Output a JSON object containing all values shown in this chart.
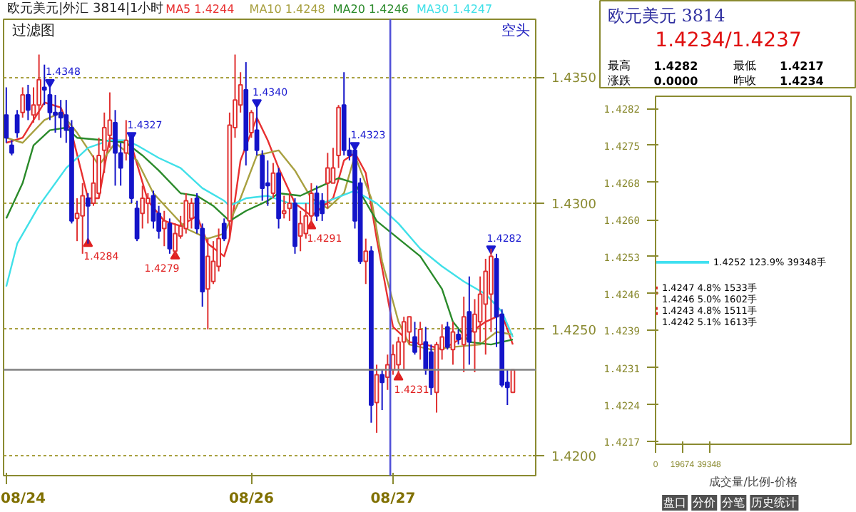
{
  "chart_data": [
    {
      "type": "candlestick",
      "title": "欧元美元|外汇 3814|1小时",
      "subtitle": "过滤图",
      "categories": [
        "08/24",
        null,
        null,
        null,
        null,
        null,
        null,
        null,
        null,
        null,
        null,
        null,
        null,
        null,
        null,
        null,
        null,
        null,
        null,
        null,
        null,
        null,
        null,
        null,
        null,
        null,
        null,
        null,
        null,
        null,
        null,
        null,
        null,
        null,
        null,
        null,
        null,
        null,
        null,
        null,
        null,
        null,
        null,
        null,
        null,
        "08/26",
        null,
        null,
        null,
        null,
        null,
        null,
        null,
        null,
        null,
        null,
        null,
        null,
        null,
        null,
        null,
        null,
        null,
        null,
        null,
        null,
        null,
        null,
        null,
        null,
        null,
        "08/27",
        null,
        null,
        null,
        null,
        null,
        null,
        null,
        null,
        null,
        null,
        null,
        null,
        null,
        null,
        null,
        null,
        null,
        null,
        null,
        null,
        null,
        null
      ],
      "ohlc": [
        [
          1.4335,
          1.4346,
          1.4324,
          1.4326
        ],
        [
          1.4323,
          1.4325,
          1.4319,
          1.432
        ],
        [
          1.4335,
          1.4337,
          1.4326,
          1.4328
        ],
        [
          1.4336,
          1.4346,
          1.4334,
          1.4343
        ],
        [
          1.4343,
          1.4347,
          1.4333,
          1.4337
        ],
        [
          1.4335,
          1.4346,
          1.4332,
          1.4339
        ],
        [
          1.4339,
          1.4359,
          1.4333,
          1.4349
        ],
        [
          1.4346,
          1.4355,
          1.4339,
          1.4345
        ],
        [
          1.4343,
          1.4348,
          1.4333,
          1.4336
        ],
        [
          1.4336,
          1.4343,
          1.4328,
          1.4335
        ],
        [
          1.4336,
          1.4341,
          1.4326,
          1.4334
        ],
        [
          1.4335,
          1.4341,
          1.4324,
          1.4329
        ],
        [
          1.433,
          1.4333,
          1.4292,
          1.4293
        ],
        [
          1.4294,
          1.4302,
          1.4285,
          1.4296
        ],
        [
          1.4295,
          1.4308,
          1.428,
          1.4303
        ],
        [
          1.4302,
          1.4304,
          1.4284,
          1.4299
        ],
        [
          1.43,
          1.4319,
          1.4299,
          1.4308
        ],
        [
          1.4304,
          1.4326,
          1.4302,
          1.4319
        ],
        [
          1.4321,
          1.4336,
          1.4312,
          1.433
        ],
        [
          1.4327,
          1.4344,
          1.4322,
          1.4333
        ],
        [
          1.4332,
          1.4337,
          1.4307,
          1.432
        ],
        [
          1.432,
          1.4324,
          1.4307,
          1.4314
        ],
        [
          1.432,
          1.4333,
          1.4317,
          1.4325
        ],
        [
          1.4326,
          1.4327,
          1.43,
          1.4302
        ],
        [
          1.4298,
          1.4301,
          1.4285,
          1.4286
        ],
        [
          1.4296,
          1.4307,
          1.429,
          1.4302
        ],
        [
          1.43,
          1.4304,
          1.4292,
          1.4302
        ],
        [
          1.4303,
          1.4305,
          1.429,
          1.4293
        ],
        [
          1.4296,
          1.4299,
          1.4286,
          1.4289
        ],
        [
          1.429,
          1.4297,
          1.4283,
          1.4293
        ],
        [
          1.4292,
          1.4294,
          1.428,
          1.4282
        ],
        [
          1.4281,
          1.4292,
          1.4279,
          1.4288
        ],
        [
          1.4287,
          1.4295,
          1.4286,
          1.4291
        ],
        [
          1.429,
          1.4304,
          1.4288,
          1.4301
        ],
        [
          1.4294,
          1.4302,
          1.429,
          1.43
        ],
        [
          1.4302,
          1.4304,
          1.4288,
          1.429
        ],
        [
          1.429,
          1.4292,
          1.4259,
          1.4265
        ],
        [
          1.4266,
          1.4286,
          1.425,
          1.4279
        ],
        [
          1.4269,
          1.4285,
          1.4268,
          1.4277
        ],
        [
          1.4275,
          1.429,
          1.4273,
          1.4286
        ],
        [
          1.4292,
          1.4294,
          1.4285,
          1.4286
        ],
        [
          1.4293,
          1.4336,
          1.4286,
          1.4331
        ],
        [
          1.433,
          1.4359,
          1.4326,
          1.4341
        ],
        [
          1.4339,
          1.4352,
          1.4336,
          1.4347
        ],
        [
          1.4345,
          1.4356,
          1.4315,
          1.4321
        ],
        [
          1.4328,
          1.4337,
          1.4326,
          1.4336
        ],
        [
          1.4329,
          1.434,
          1.4319,
          1.4321
        ],
        [
          1.4319,
          1.4321,
          1.4301,
          1.4306
        ],
        [
          1.4308,
          1.4317,
          1.4299,
          1.4307
        ],
        [
          1.4304,
          1.4316,
          1.4302,
          1.4312
        ],
        [
          1.4312,
          1.4314,
          1.429,
          1.4294
        ],
        [
          1.4296,
          1.4303,
          1.4294,
          1.4297
        ],
        [
          1.4298,
          1.4304,
          1.4293,
          1.43
        ],
        [
          1.43,
          1.4302,
          1.428,
          1.4283
        ],
        [
          1.4287,
          1.4297,
          1.4281,
          1.4292
        ],
        [
          1.4288,
          1.43,
          1.4286,
          1.4295
        ],
        [
          1.4295,
          1.4308,
          1.4291,
          1.4304
        ],
        [
          1.4304,
          1.4307,
          1.4293,
          1.4295
        ],
        [
          1.4301,
          1.4304,
          1.4293,
          1.4296
        ],
        [
          1.4308,
          1.432,
          1.4298,
          1.4314
        ],
        [
          1.4308,
          1.4322,
          1.4308,
          1.4314
        ],
        [
          1.4319,
          1.4339,
          1.4314,
          1.4338
        ],
        [
          1.4339,
          1.4352,
          1.4319,
          1.4321
        ],
        [
          1.4321,
          1.4326,
          1.4317,
          1.4319
        ],
        [
          1.4321,
          1.4323,
          1.429,
          1.4293
        ],
        [
          1.4308,
          1.431,
          1.4276,
          1.4277
        ],
        [
          1.4277,
          1.4286,
          1.4268,
          1.4281
        ],
        [
          1.4281,
          1.4283,
          1.4213,
          1.422
        ],
        [
          1.4221,
          1.4236,
          1.4209,
          1.4232
        ],
        [
          1.4232,
          1.4234,
          1.4218,
          1.4229
        ],
        [
          1.4231,
          1.424,
          1.4226,
          1.4236
        ],
        [
          1.4234,
          1.4244,
          1.4232,
          1.424
        ],
        [
          1.4236,
          1.4247,
          1.4231,
          1.4245
        ],
        [
          1.4245,
          1.4255,
          1.4234,
          1.4253
        ],
        [
          1.4249,
          1.4255,
          1.4244,
          1.4255
        ],
        [
          1.4247,
          1.4253,
          1.424,
          1.4241
        ],
        [
          1.4244,
          1.4253,
          1.4238,
          1.425
        ],
        [
          1.4245,
          1.4251,
          1.4232,
          1.4234
        ],
        [
          1.4241,
          1.4244,
          1.4224,
          1.4227
        ],
        [
          1.4225,
          1.4245,
          1.4217,
          1.4244
        ],
        [
          1.4242,
          1.4252,
          1.4238,
          1.4247
        ],
        [
          1.4251,
          1.4253,
          1.4242,
          1.4243
        ],
        [
          1.4242,
          1.4253,
          1.4236,
          1.4249
        ],
        [
          1.4248,
          1.425,
          1.4244,
          1.4246
        ],
        [
          1.4244,
          1.4263,
          1.4233,
          1.4255
        ],
        [
          1.4257,
          1.4271,
          1.4236,
          1.4245
        ],
        [
          1.4249,
          1.4262,
          1.4233,
          1.4256
        ],
        [
          1.4253,
          1.4271,
          1.4245,
          1.4264
        ],
        [
          1.426,
          1.4278,
          1.424,
          1.4273
        ],
        [
          1.4264,
          1.4282,
          1.4249,
          1.4279
        ],
        [
          1.4278,
          1.428,
          1.4243,
          1.4255
        ],
        [
          1.4256,
          1.4258,
          1.4227,
          1.4228
        ],
        [
          1.4229,
          1.4234,
          1.422,
          1.4227
        ],
        [
          1.4225,
          1.4234,
          1.4225,
          1.4234
        ]
      ],
      "colors": [
        "#1414c8",
        "#1414c8",
        "#1414c8",
        "#e03030",
        "#1414c8",
        "#e03030",
        "#e03030",
        "#1414c8",
        "#1414c8",
        "#1414c8",
        "#1414c8",
        "#1414c8",
        "#1414c8",
        "#e03030",
        "#e03030",
        "#1414c8",
        "#e03030",
        "#e03030",
        "#e03030",
        "#e03030",
        "#1414c8",
        "#1414c8",
        "#e03030",
        "#1414c8",
        "#1414c8",
        "#e03030",
        "#e03030",
        "#1414c8",
        "#1414c8",
        "#e03030",
        "#1414c8",
        "#e03030",
        "#e03030",
        "#e03030",
        "#e03030",
        "#1414c8",
        "#1414c8",
        "#e03030",
        "#e03030",
        "#e03030",
        "#1414c8",
        "#e03030",
        "#e03030",
        "#e03030",
        "#1414c8",
        "#e03030",
        "#1414c8",
        "#1414c8",
        "#1414c8",
        "#e03030",
        "#1414c8",
        "#e03030",
        "#e03030",
        "#1414c8",
        "#e03030",
        "#e03030",
        "#e03030",
        "#1414c8",
        "#1414c8",
        "#e03030",
        "#e03030",
        "#e03030",
        "#1414c8",
        "#1414c8",
        "#1414c8",
        "#1414c8",
        "#e03030",
        "#1414c8",
        "#e03030",
        "#1414c8",
        "#e03030",
        "#e03030",
        "#e03030",
        "#e03030",
        "#e03030",
        "#1414c8",
        "#e03030",
        "#1414c8",
        "#1414c8",
        "#e03030",
        "#e03030",
        "#1414c8",
        "#e03030",
        "#1414c8",
        "#e03030",
        "#1414c8",
        "#e03030",
        "#e03030",
        "#e03030",
        "#e03030",
        "#1414c8",
        "#1414c8",
        "#1414c8",
        "#e03030"
      ],
      "series": [
        {
          "name": "MA5 1.4244",
          "type": "line",
          "color": "#e83030",
          "values": [
            1.4324,
            null,
            null,
            1.4326,
            null,
            null,
            null,
            1.434,
            null,
            null,
            1.4338,
            null,
            1.4328,
            null,
            null,
            1.4302,
            null,
            1.4302,
            null,
            1.4326,
            null,
            null,
            null,
            1.4323,
            null,
            null,
            1.4301,
            null,
            null,
            1.4293,
            null,
            null,
            1.4291,
            null,
            null,
            1.4295,
            null,
            1.4284,
            null,
            null,
            1.4279,
            1.4286,
            null,
            1.4317,
            null,
            null,
            1.4334,
            null,
            1.4325,
            null,
            1.4314,
            null,
            null,
            1.43,
            null,
            null,
            1.4295,
            null,
            null,
            null,
            1.4302,
            null,
            1.4317,
            null,
            1.432,
            null,
            1.4312,
            null,
            1.4286,
            null,
            null,
            1.4251,
            null,
            null,
            1.4245,
            null,
            null,
            1.4244,
            null,
            null,
            1.4242,
            null,
            null,
            null,
            1.4247,
            null,
            null,
            null,
            1.4253,
            null,
            null,
            1.4256,
            null,
            1.4244
          ]
        },
        {
          "name": "MA10 1.4248",
          "type": "line",
          "color": "#a8a040",
          "values": [
            1.4326,
            null,
            null,
            1.4324,
            null,
            null,
            null,
            1.4333,
            null,
            null,
            1.4336,
            null,
            null,
            1.4328,
            null,
            null,
            null,
            1.4315,
            null,
            null,
            1.4324,
            null,
            null,
            null,
            1.4317,
            null,
            null,
            1.4304,
            null,
            null,
            1.4297,
            null,
            null,
            1.429,
            null,
            null,
            null,
            1.4286,
            null,
            null,
            1.4288,
            null,
            null,
            1.4302,
            null,
            null,
            1.4319,
            null,
            null,
            null,
            1.4321,
            null,
            null,
            1.4313,
            null,
            null,
            1.4302,
            null,
            null,
            1.4298,
            null,
            null,
            1.4304,
            null,
            1.4319,
            null,
            null,
            1.4302,
            null,
            1.4277,
            null,
            null,
            1.4253,
            null,
            1.4244,
            null,
            null,
            null,
            1.4242,
            null,
            null,
            null,
            1.4243,
            null,
            null,
            null,
            null,
            1.4244,
            null,
            null,
            1.4249,
            null,
            null,
            1.4248
          ]
        },
        {
          "name": "MA20 1.4246",
          "type": "line",
          "color": "#2a8a2a",
          "values": [
            1.4294,
            null,
            null,
            1.4308,
            null,
            1.4323,
            null,
            null,
            1.4329,
            null,
            null,
            1.433,
            null,
            1.4326,
            null,
            null,
            null,
            null,
            1.4325,
            null,
            null,
            null,
            1.4324,
            null,
            null,
            1.4319,
            null,
            null,
            1.4313,
            null,
            null,
            null,
            1.4304,
            null,
            null,
            1.4303,
            null,
            null,
            1.4299,
            null,
            null,
            1.4293,
            null,
            null,
            1.4297,
            null,
            null,
            null,
            1.4301,
            null,
            1.4304,
            null,
            null,
            null,
            1.4303,
            null,
            null,
            1.4306,
            null,
            null,
            null,
            1.431,
            null,
            null,
            1.4308,
            null,
            null,
            null,
            1.4293,
            null,
            null,
            null,
            1.4286,
            null,
            null,
            null,
            1.4279,
            null,
            null,
            null,
            1.4266,
            null,
            1.4253,
            null,
            null,
            1.4245,
            null,
            null,
            null,
            1.4244,
            null,
            null,
            null,
            1.4246
          ]
        },
        {
          "name": "MA30 1.4247",
          "type": "line",
          "color": "#40e0e8",
          "values": [
            1.4267,
            null,
            1.4284,
            null,
            null,
            null,
            1.4299,
            null,
            null,
            null,
            null,
            1.4314,
            null,
            null,
            null,
            1.4322,
            null,
            null,
            null,
            1.4325,
            null,
            null,
            1.4325,
            null,
            1.4323,
            null,
            null,
            null,
            1.4318,
            null,
            null,
            null,
            1.4314,
            null,
            null,
            null,
            1.4306,
            null,
            null,
            null,
            1.4301,
            1.4299,
            null,
            null,
            1.4302,
            null,
            null,
            null,
            1.4303,
            null,
            null,
            null,
            1.43,
            null,
            null,
            null,
            null,
            null,
            1.43,
            null,
            null,
            null,
            null,
            null,
            1.4305,
            null,
            null,
            null,
            1.43,
            null,
            null,
            null,
            1.4292,
            null,
            null,
            null,
            1.4282,
            null,
            null,
            null,
            1.4275,
            null,
            null,
            null,
            1.4269,
            null,
            null,
            null,
            1.4264,
            null,
            null,
            1.4257,
            null,
            1.4247
          ]
        },
        {
          "type": "scatter",
          "marker": "triangle",
          "color": "#1a1ad0",
          "values": [
            null,
            null,
            null,
            null,
            null,
            null,
            null,
            null,
            1.4348,
            null,
            null,
            null,
            null,
            null,
            null,
            null,
            null,
            null,
            null,
            null,
            null,
            null,
            null,
            1.4327,
            null,
            null,
            null,
            null,
            null,
            null,
            null,
            null,
            null,
            null,
            null,
            null,
            null,
            null,
            null,
            null,
            null,
            null,
            null,
            null,
            null,
            null,
            1.434,
            null,
            null,
            null,
            null,
            null,
            null,
            null,
            null,
            null,
            null,
            null,
            null,
            null,
            null,
            null,
            null,
            null,
            1.4323,
            null,
            null,
            null,
            null,
            null,
            null,
            null,
            null,
            null,
            null,
            null,
            null,
            null,
            null,
            null,
            null,
            null,
            null,
            null,
            null,
            null,
            null,
            null,
            null,
            1.4282,
            null,
            null,
            null,
            null
          ],
          "value_labels": [
            null,
            null,
            null,
            null,
            null,
            null,
            null,
            null,
            "1.4348",
            null,
            null,
            null,
            null,
            null,
            null,
            null,
            null,
            null,
            null,
            null,
            null,
            null,
            null,
            "1.4327",
            null,
            null,
            null,
            null,
            null,
            null,
            null,
            null,
            null,
            null,
            null,
            null,
            null,
            null,
            null,
            null,
            null,
            null,
            null,
            null,
            null,
            null,
            "1.4340",
            null,
            null,
            null,
            null,
            null,
            null,
            null,
            null,
            null,
            null,
            null,
            null,
            null,
            null,
            null,
            null,
            null,
            "1.4323",
            null,
            null,
            null,
            null,
            null,
            null,
            null,
            null,
            null,
            null,
            null,
            null,
            null,
            null,
            null,
            null,
            null,
            null,
            null,
            null,
            null,
            null,
            null,
            null,
            "1.4282",
            null,
            null,
            null,
            null
          ]
        },
        {
          "type": "scatter",
          "marker": "triangle",
          "color": "#e02020",
          "values": [
            null,
            null,
            null,
            null,
            null,
            null,
            null,
            null,
            null,
            null,
            null,
            null,
            null,
            null,
            null,
            1.4284,
            null,
            null,
            null,
            null,
            null,
            null,
            null,
            null,
            null,
            null,
            null,
            null,
            null,
            null,
            null,
            1.4279,
            null,
            null,
            null,
            null,
            null,
            null,
            null,
            null,
            null,
            null,
            null,
            null,
            null,
            null,
            null,
            null,
            null,
            null,
            null,
            null,
            null,
            null,
            null,
            null,
            1.4291,
            null,
            null,
            null,
            null,
            null,
            null,
            null,
            null,
            null,
            null,
            null,
            null,
            null,
            null,
            null,
            1.4231,
            null,
            null,
            null,
            null,
            null,
            null,
            null,
            null,
            null,
            null,
            null,
            null,
            null,
            null,
            null,
            null,
            null,
            null,
            null,
            null,
            null
          ],
          "value_labels": [
            null,
            null,
            null,
            null,
            null,
            null,
            null,
            null,
            null,
            null,
            null,
            null,
            null,
            null,
            null,
            "1.4284",
            null,
            null,
            null,
            null,
            null,
            null,
            null,
            null,
            null,
            null,
            null,
            null,
            null,
            null,
            null,
            "1.4279",
            null,
            null,
            null,
            null,
            null,
            null,
            null,
            null,
            null,
            null,
            null,
            null,
            null,
            null,
            null,
            null,
            null,
            null,
            null,
            null,
            null,
            null,
            null,
            null,
            "1.4291",
            null,
            null,
            null,
            null,
            null,
            null,
            null,
            null,
            null,
            null,
            null,
            null,
            null,
            null,
            null,
            "1.4231",
            null,
            null,
            null,
            null,
            null,
            null,
            null,
            null,
            null,
            null,
            null,
            null,
            null,
            null,
            null,
            null,
            null,
            null,
            null,
            null,
            null
          ]
        }
      ],
      "ylim": [
        1.4192,
        1.4373
      ],
      "yticks": [
        {
          "value": 1.42,
          "label": "1.4200"
        },
        {
          "value": 1.425,
          "label": "1.4250"
        },
        {
          "value": 1.43,
          "label": "1.4300"
        },
        {
          "value": 1.435,
          "label": "1.4350"
        }
      ],
      "grid": "y",
      "ref_lines": [
        {
          "axis": "y",
          "value": 1.4234,
          "color": "#808080"
        },
        {
          "axis": "x",
          "value": "08/27",
          "color": "#5050d8"
        }
      ],
      "annotations": [
        "空头"
      ]
    },
    {
      "type": "other",
      "title": "欧元美元 3814",
      "subtitle": "1.4234/1.4237",
      "annotations": [
        "最高",
        "1.4282",
        "最低",
        "1.4217",
        "涨跌",
        "0.0000",
        "昨收",
        "1.4234"
      ]
    },
    {
      "type": "bar",
      "orientation": "horizontal",
      "x": [
        1.4252,
        1.4247,
        1.4246,
        1.4243,
        1.4242
      ],
      "values": [
        39348,
        1533,
        1602,
        1511,
        1613
      ],
      "colors": [
        "#40e0f0",
        "#e02020",
        "#e02020",
        "#e02020",
        "#e02020"
      ],
      "value_labels": [
        "1.4252 123.9% 39348手",
        "1.4247 4.8% 1533手",
        "1.4246 5.0% 1602手",
        "1.4243 4.8% 1511手",
        "1.4242 5.1% 1613手"
      ],
      "xlim": [
        0,
        143600
      ],
      "xticks": [
        0,
        19674,
        39348
      ],
      "ylim": [
        1.42165,
        1.42844
      ],
      "yticks": [
        {
          "value": 1.4282,
          "label": "1.4282"
        },
        {
          "value": 1.42748,
          "label": "1.4275"
        },
        {
          "value": 1.42676,
          "label": "1.4268"
        },
        {
          "value": 1.42603,
          "label": "1.4260"
        },
        {
          "value": 1.42531,
          "label": "1.4253"
        },
        {
          "value": 1.42459,
          "label": "1.4246"
        },
        {
          "value": 1.42387,
          "label": "1.4239"
        },
        {
          "value": 1.42314,
          "label": "1.4231"
        },
        {
          "value": 1.42242,
          "label": "1.4224"
        },
        {
          "value": 1.4217,
          "label": "1.4217"
        }
      ],
      "xlabel": "成交量/比例-价格",
      "annotations": [
        "盘口",
        "分价",
        "分笔",
        "历史统计"
      ]
    }
  ]
}
